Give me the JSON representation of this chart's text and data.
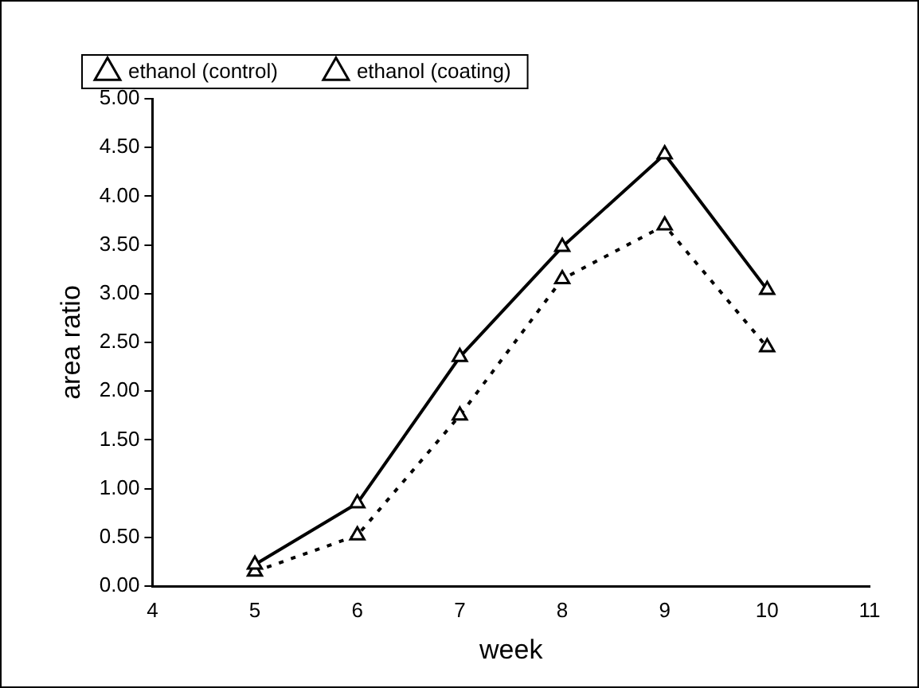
{
  "chart_data": {
    "type": "line",
    "xlabel": "week",
    "ylabel": "area ratio",
    "x": [
      5,
      6,
      7,
      8,
      9,
      10
    ],
    "series": [
      {
        "name": "ethanol (control)",
        "color": "#000000",
        "line_style": "solid",
        "values": [
          0.22,
          0.85,
          2.35,
          3.48,
          4.43,
          3.04
        ]
      },
      {
        "name": "ethanol (coating)",
        "color": "#000000",
        "line_style": "dotted",
        "values": [
          0.15,
          0.52,
          1.75,
          3.15,
          3.7,
          2.45
        ]
      }
    ],
    "xlim": [
      4,
      11
    ],
    "xticks": [
      4,
      5,
      6,
      7,
      8,
      9,
      10,
      11
    ],
    "ylim": [
      0,
      5
    ],
    "yticks": [
      {
        "value": 0,
        "label": "0.00"
      },
      {
        "value": 0.5,
        "label": "0.50"
      },
      {
        "value": 1,
        "label": "1.00"
      },
      {
        "value": 1.5,
        "label": "1.50"
      },
      {
        "value": 2,
        "label": "2.00"
      },
      {
        "value": 2.5,
        "label": "2.50"
      },
      {
        "value": 3,
        "label": "3.00"
      },
      {
        "value": 3.5,
        "label": "3.50"
      },
      {
        "value": 4,
        "label": "4.00"
      },
      {
        "value": 4.5,
        "label": "4.50"
      },
      {
        "value": 5,
        "label": "5.00"
      }
    ],
    "grid": false,
    "legend": "top left",
    "marker": "triangle"
  }
}
